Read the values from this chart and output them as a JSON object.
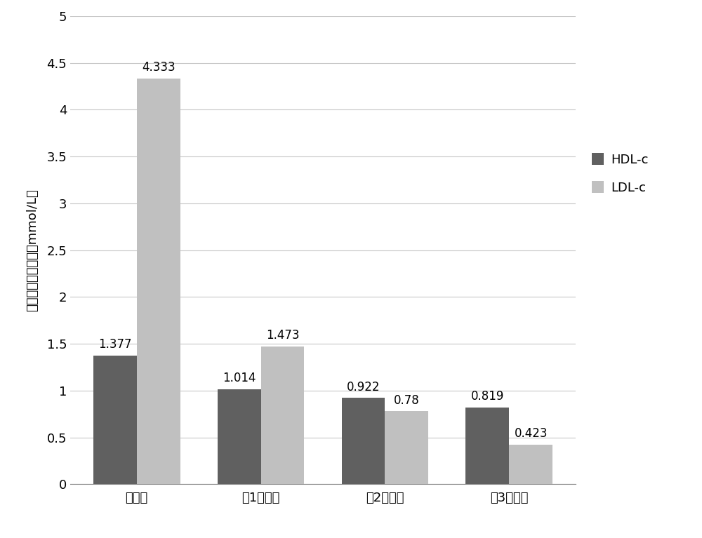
{
  "categories": [
    "原血清",
    "第1轮枪滤",
    "第2轮枪滤",
    "第3轮枪滤"
  ],
  "hdl_values": [
    1.377,
    1.014,
    0.922,
    0.819
  ],
  "ldl_values": [
    4.333,
    1.473,
    0.78,
    0.423
  ],
  "hdl_color": "#606060",
  "ldl_color": "#c0c0c0",
  "ylabel": "脂蛋白胆固醇浓度（mmol/L）",
  "ylim": [
    0,
    5
  ],
  "yticks": [
    0,
    0.5,
    1,
    1.5,
    2,
    2.5,
    3,
    3.5,
    4,
    4.5,
    5
  ],
  "ytick_labels": [
    "0",
    "0.5",
    "1",
    "1.5",
    "2",
    "2.5",
    "3",
    "3.5",
    "4",
    "4.5",
    "5"
  ],
  "legend_labels": [
    "HDL-c",
    "LDL-c"
  ],
  "bar_width": 0.35,
  "label_fontsize": 13,
  "tick_fontsize": 13,
  "annotation_fontsize": 12,
  "background_color": "#ffffff",
  "grid_color": "#c8c8c8"
}
